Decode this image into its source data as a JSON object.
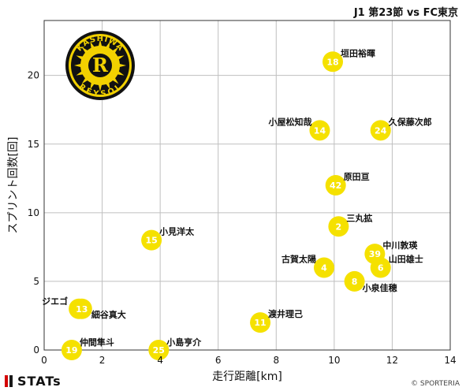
{
  "header": {
    "match": "J1 第23節 vs FC東京"
  },
  "footer": {
    "brand": "STATs",
    "credit": "© SPORTERIA"
  },
  "logo": {
    "top_text": "KASHIWA",
    "bottom_text": "REYSOL",
    "letter": "R"
  },
  "colors": {
    "point": "#f5e100",
    "grid": "#bfbfbf",
    "logo_black": "#111111",
    "logo_yellow": "#f2d100"
  },
  "chart_data": {
    "type": "scatter",
    "xlabel": "走行距離[km]",
    "ylabel": "スプリント回数[回]",
    "xlim": [
      0,
      14
    ],
    "ylim": [
      0,
      24
    ],
    "xticks": [
      0,
      2,
      4,
      6,
      8,
      10,
      12,
      14
    ],
    "yticks": [
      0,
      5,
      10,
      15,
      20
    ],
    "grid": true,
    "points": [
      {
        "number": "18",
        "name": "垣田裕暉",
        "x": 9.95,
        "y": 21
      },
      {
        "number": "14",
        "name": "小屋松知哉",
        "x": 9.5,
        "y": 16
      },
      {
        "number": "24",
        "name": "久保藤次郎",
        "x": 11.6,
        "y": 16
      },
      {
        "number": "42",
        "name": "原田亘",
        "x": 10.05,
        "y": 12
      },
      {
        "number": "2",
        "name": "三丸拡",
        "x": 10.15,
        "y": 9
      },
      {
        "number": "15",
        "name": "小見洋太",
        "x": 3.7,
        "y": 8
      },
      {
        "number": "39",
        "name": "中川敦瑛",
        "x": 11.4,
        "y": 7
      },
      {
        "number": "6",
        "name": "山田雄士",
        "x": 11.6,
        "y": 6
      },
      {
        "number": "4",
        "name": "古賀太陽",
        "x": 9.65,
        "y": 6
      },
      {
        "number": "8",
        "name": "小泉佳穂",
        "x": 10.7,
        "y": 5
      },
      {
        "number": "3",
        "name": "ジエゴ",
        "x": 1.2,
        "y": 3
      },
      {
        "number": "13",
        "name": "細谷真大",
        "x": 1.3,
        "y": 3
      },
      {
        "number": "11",
        "name": "渡井理己",
        "x": 7.45,
        "y": 2
      },
      {
        "number": "19",
        "name": "仲間隼斗",
        "x": 0.95,
        "y": 0
      },
      {
        "number": "25",
        "name": "小島亨介",
        "x": 3.95,
        "y": 0
      }
    ]
  }
}
